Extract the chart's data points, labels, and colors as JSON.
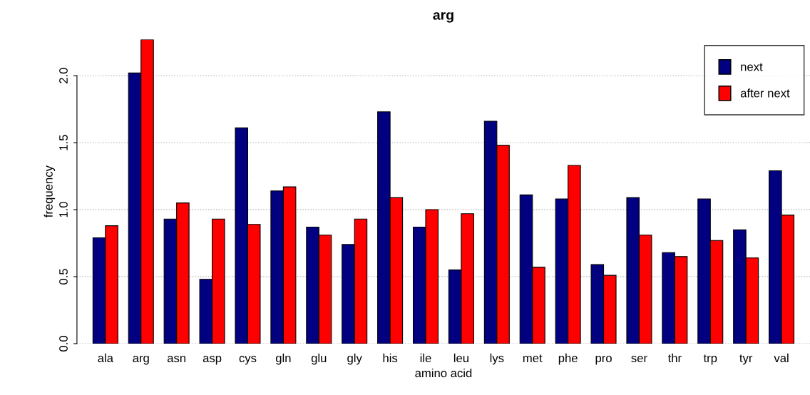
{
  "chart_data": {
    "type": "bar",
    "title": "arg",
    "xlabel": "amino acid",
    "ylabel": "frequency",
    "categories": [
      "ala",
      "arg",
      "asn",
      "asp",
      "cys",
      "gln",
      "glu",
      "gly",
      "his",
      "ile",
      "leu",
      "lys",
      "met",
      "phe",
      "pro",
      "ser",
      "thr",
      "trp",
      "tyr",
      "val"
    ],
    "series": [
      {
        "name": "next",
        "color": "#000080",
        "values": [
          0.79,
          2.02,
          0.93,
          0.48,
          1.61,
          1.14,
          0.87,
          0.74,
          1.73,
          0.87,
          0.55,
          1.66,
          1.11,
          1.08,
          0.59,
          1.09,
          0.68,
          1.08,
          0.85,
          1.29
        ]
      },
      {
        "name": "after next",
        "color": "#ff0000",
        "values": [
          0.88,
          2.27,
          1.05,
          0.93,
          0.89,
          1.17,
          0.81,
          0.93,
          1.09,
          1.0,
          0.97,
          1.48,
          0.57,
          1.33,
          0.51,
          0.81,
          0.65,
          0.77,
          0.64,
          0.96
        ]
      }
    ],
    "ylim": [
      0,
      2.27
    ],
    "yticks": [
      {
        "value": 0,
        "label": "0.0"
      },
      {
        "value": 0.5,
        "label": "0.5"
      },
      {
        "value": 1,
        "label": "1.0"
      },
      {
        "value": 1.5,
        "label": "1.5"
      },
      {
        "value": 2,
        "label": "2.0"
      }
    ],
    "grid": "y",
    "legend": "top right"
  }
}
